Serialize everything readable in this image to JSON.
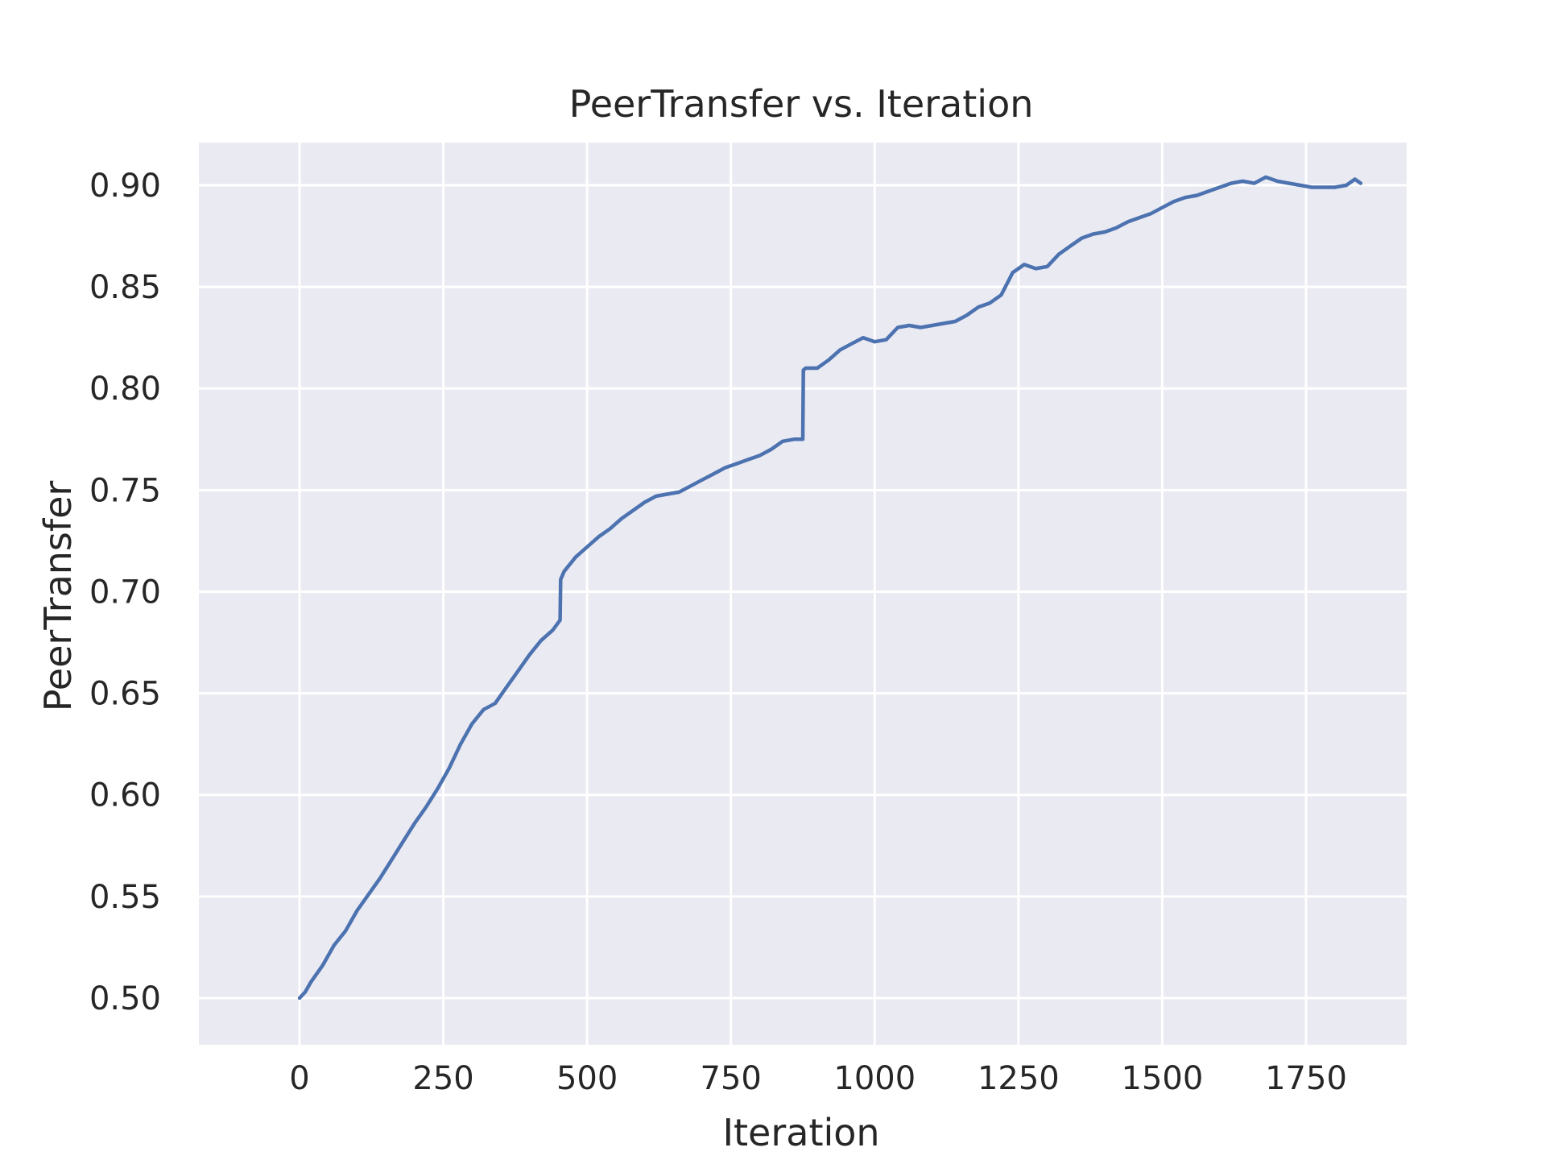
{
  "chart_data": {
    "type": "line",
    "title": "PeerTransfer vs. Iteration",
    "xlabel": "Iteration",
    "ylabel": "PeerTransfer",
    "xlim": [
      -175,
      1925
    ],
    "ylim": [
      0.477,
      0.921
    ],
    "xticks": [
      0,
      250,
      500,
      750,
      1000,
      1250,
      1500,
      1750
    ],
    "xtick_labels": [
      "0",
      "250",
      "500",
      "750",
      "1000",
      "1250",
      "1500",
      "1750"
    ],
    "yticks": [
      0.5,
      0.55,
      0.6,
      0.65,
      0.7,
      0.75,
      0.8,
      0.85,
      0.9
    ],
    "ytick_labels": [
      "0.50",
      "0.55",
      "0.60",
      "0.65",
      "0.70",
      "0.75",
      "0.80",
      "0.85",
      "0.90"
    ],
    "grid": true,
    "style": {
      "background": "#eaeaf2",
      "grid_color": "#ffffff",
      "line_color": "#4c72b0"
    },
    "series": [
      {
        "x": [
          0,
          10,
          20,
          40,
          60,
          80,
          100,
          120,
          140,
          160,
          180,
          200,
          220,
          240,
          260,
          280,
          300,
          320,
          340,
          360,
          380,
          400,
          420,
          440,
          453,
          454,
          460,
          480,
          500,
          520,
          540,
          560,
          580,
          600,
          620,
          640,
          660,
          680,
          700,
          720,
          740,
          760,
          780,
          800,
          820,
          840,
          860,
          875,
          876,
          880,
          900,
          920,
          940,
          960,
          980,
          1000,
          1020,
          1040,
          1060,
          1080,
          1100,
          1120,
          1140,
          1160,
          1180,
          1200,
          1220,
          1240,
          1260,
          1280,
          1300,
          1320,
          1340,
          1360,
          1380,
          1400,
          1420,
          1440,
          1460,
          1480,
          1500,
          1520,
          1540,
          1560,
          1580,
          1600,
          1620,
          1640,
          1660,
          1680,
          1700,
          1720,
          1740,
          1760,
          1780,
          1800,
          1820,
          1835,
          1845
        ],
        "y": [
          0.5,
          0.503,
          0.508,
          0.516,
          0.526,
          0.533,
          0.543,
          0.551,
          0.559,
          0.568,
          0.577,
          0.586,
          0.594,
          0.603,
          0.613,
          0.625,
          0.635,
          0.642,
          0.645,
          0.653,
          0.661,
          0.669,
          0.676,
          0.681,
          0.686,
          0.706,
          0.71,
          0.717,
          0.722,
          0.727,
          0.731,
          0.736,
          0.74,
          0.744,
          0.747,
          0.748,
          0.749,
          0.752,
          0.755,
          0.758,
          0.761,
          0.763,
          0.765,
          0.767,
          0.77,
          0.774,
          0.775,
          0.775,
          0.809,
          0.81,
          0.81,
          0.814,
          0.819,
          0.822,
          0.825,
          0.823,
          0.824,
          0.83,
          0.831,
          0.83,
          0.831,
          0.832,
          0.833,
          0.836,
          0.84,
          0.842,
          0.846,
          0.857,
          0.861,
          0.859,
          0.86,
          0.866,
          0.87,
          0.874,
          0.876,
          0.877,
          0.879,
          0.882,
          0.884,
          0.886,
          0.889,
          0.892,
          0.894,
          0.895,
          0.897,
          0.899,
          0.901,
          0.902,
          0.901,
          0.904,
          0.902,
          0.901,
          0.9,
          0.899,
          0.899,
          0.899,
          0.9,
          0.903,
          0.901
        ]
      }
    ]
  }
}
